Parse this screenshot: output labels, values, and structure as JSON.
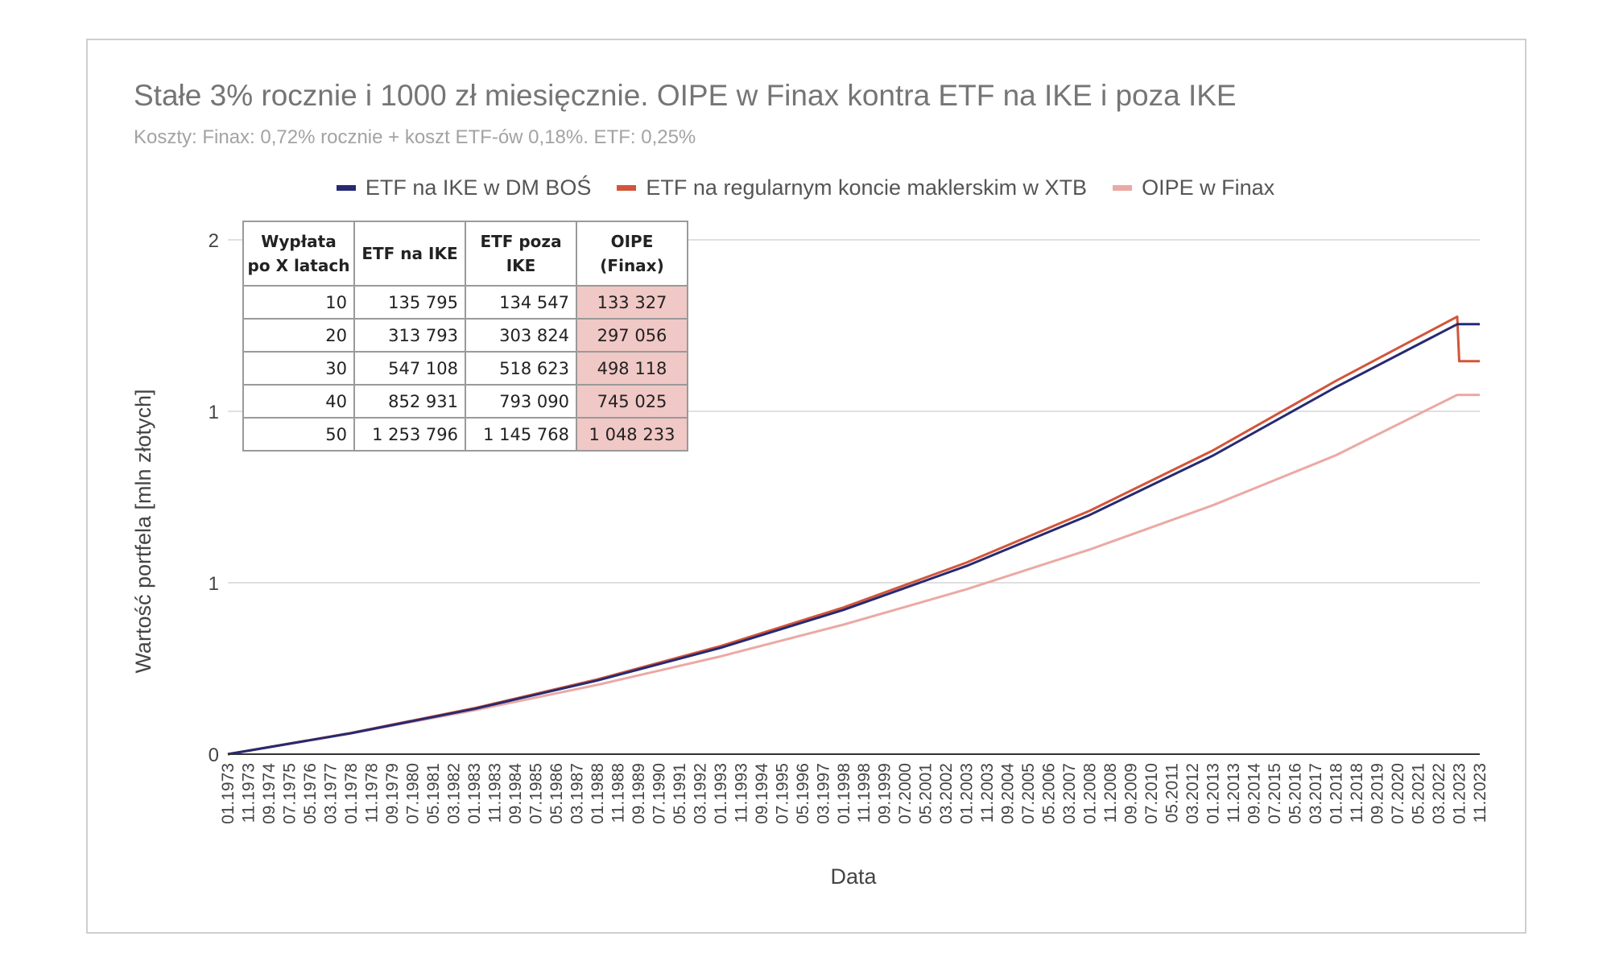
{
  "title": "Stałe 3% rocznie i 1000 zł miesięcznie. OIPE w Finax kontra ETF na IKE i poza IKE",
  "subtitle": "Koszty: Finax: 0,72% rocznie + koszt ETF-ów 0,18%. ETF: 0,25%",
  "legend": [
    {
      "label": "ETF na IKE w DM BOŚ",
      "color": "#262a72"
    },
    {
      "label": "ETF na regularnym koncie maklerskim w XTB",
      "color": "#d2553a"
    },
    {
      "label": "OIPE w Finax",
      "color": "#eba9a5"
    }
  ],
  "table": {
    "headers": [
      "Wypłata po X latach",
      "ETF na IKE",
      "ETF poza IKE",
      "OIPE (Finax)"
    ],
    "rows": [
      [
        "10",
        "135 795",
        "134 547",
        "133 327"
      ],
      [
        "20",
        "313 793",
        "303 824",
        "297 056"
      ],
      [
        "30",
        "547 108",
        "518 623",
        "498 118"
      ],
      [
        "40",
        "852 931",
        "793 090",
        "745 025"
      ],
      [
        "50",
        "1 253 796",
        "1 145 768",
        "1 048 233"
      ]
    ]
  },
  "chart_data": {
    "type": "line",
    "title": "Stałe 3% rocznie i 1000 zł miesięcznie. OIPE w Finax kontra ETF na IKE i poza IKE",
    "subtitle": "Koszty: Finax: 0,72% rocznie + koszt ETF-ów 0,18%. ETF: 0,25%",
    "xlabel": "Data",
    "ylabel": "Wartość portfela [mln złotych]",
    "ylim": [
      0,
      1.5
    ],
    "yticks": [
      {
        "value": 0,
        "label": "0"
      },
      {
        "value": 0.5,
        "label": "1"
      },
      {
        "value": 1.0,
        "label": "1"
      },
      {
        "value": 1.5,
        "label": "2"
      }
    ],
    "xticks": [
      "01.1973",
      "11.1973",
      "09.1974",
      "07.1975",
      "05.1976",
      "03.1977",
      "01.1978",
      "11.1978",
      "09.1979",
      "07.1980",
      "05.1981",
      "03.1982",
      "01.1983",
      "11.1983",
      "09.1984",
      "07.1985",
      "05.1986",
      "03.1987",
      "01.1988",
      "11.1988",
      "09.1989",
      "07.1990",
      "05.1991",
      "03.1992",
      "01.1993",
      "11.1993",
      "09.1994",
      "07.1995",
      "05.1996",
      "03.1997",
      "01.1998",
      "11.1998",
      "09.1999",
      "07.2000",
      "05.2001",
      "03.2002",
      "01.2003",
      "11.2003",
      "09.2004",
      "07.2005",
      "05.2006",
      "03.2007",
      "01.2008",
      "11.2008",
      "09.2009",
      "07.2010",
      "05.2011",
      "03.2012",
      "01.2013",
      "11.2013",
      "09.2014",
      "07.2015",
      "05.2016",
      "03.2017",
      "01.2018",
      "11.2018",
      "09.2019",
      "07.2020",
      "05.2021",
      "03.2022",
      "01.2023",
      "11.2023"
    ],
    "x": [
      "01.1973",
      "01.1978",
      "01.1983",
      "01.1988",
      "01.1993",
      "01.1998",
      "01.2003",
      "01.2008",
      "01.2013",
      "01.2018",
      "12.2022",
      "01.2023",
      "11.2023"
    ],
    "legend_position": "top",
    "grid": true,
    "series": [
      {
        "name": "ETF na IKE w DM BOŚ",
        "color": "#262a72",
        "values": [
          0,
          0.061,
          0.132,
          0.215,
          0.31,
          0.421,
          0.549,
          0.698,
          0.871,
          1.071,
          1.254,
          1.254,
          1.254
        ]
      },
      {
        "name": "ETF na regularnym koncie maklerskim w XTB",
        "color": "#d2553a",
        "values": [
          0,
          0.062,
          0.134,
          0.218,
          0.315,
          0.428,
          0.559,
          0.71,
          0.886,
          1.089,
          1.276,
          1.146,
          1.146
        ]
      },
      {
        "name": "OIPE w Finax",
        "color": "#eba9a5",
        "values": [
          0,
          0.061,
          0.128,
          0.202,
          0.285,
          0.378,
          0.481,
          0.597,
          0.726,
          0.872,
          1.048,
          1.048,
          1.048
        ]
      }
    ]
  }
}
